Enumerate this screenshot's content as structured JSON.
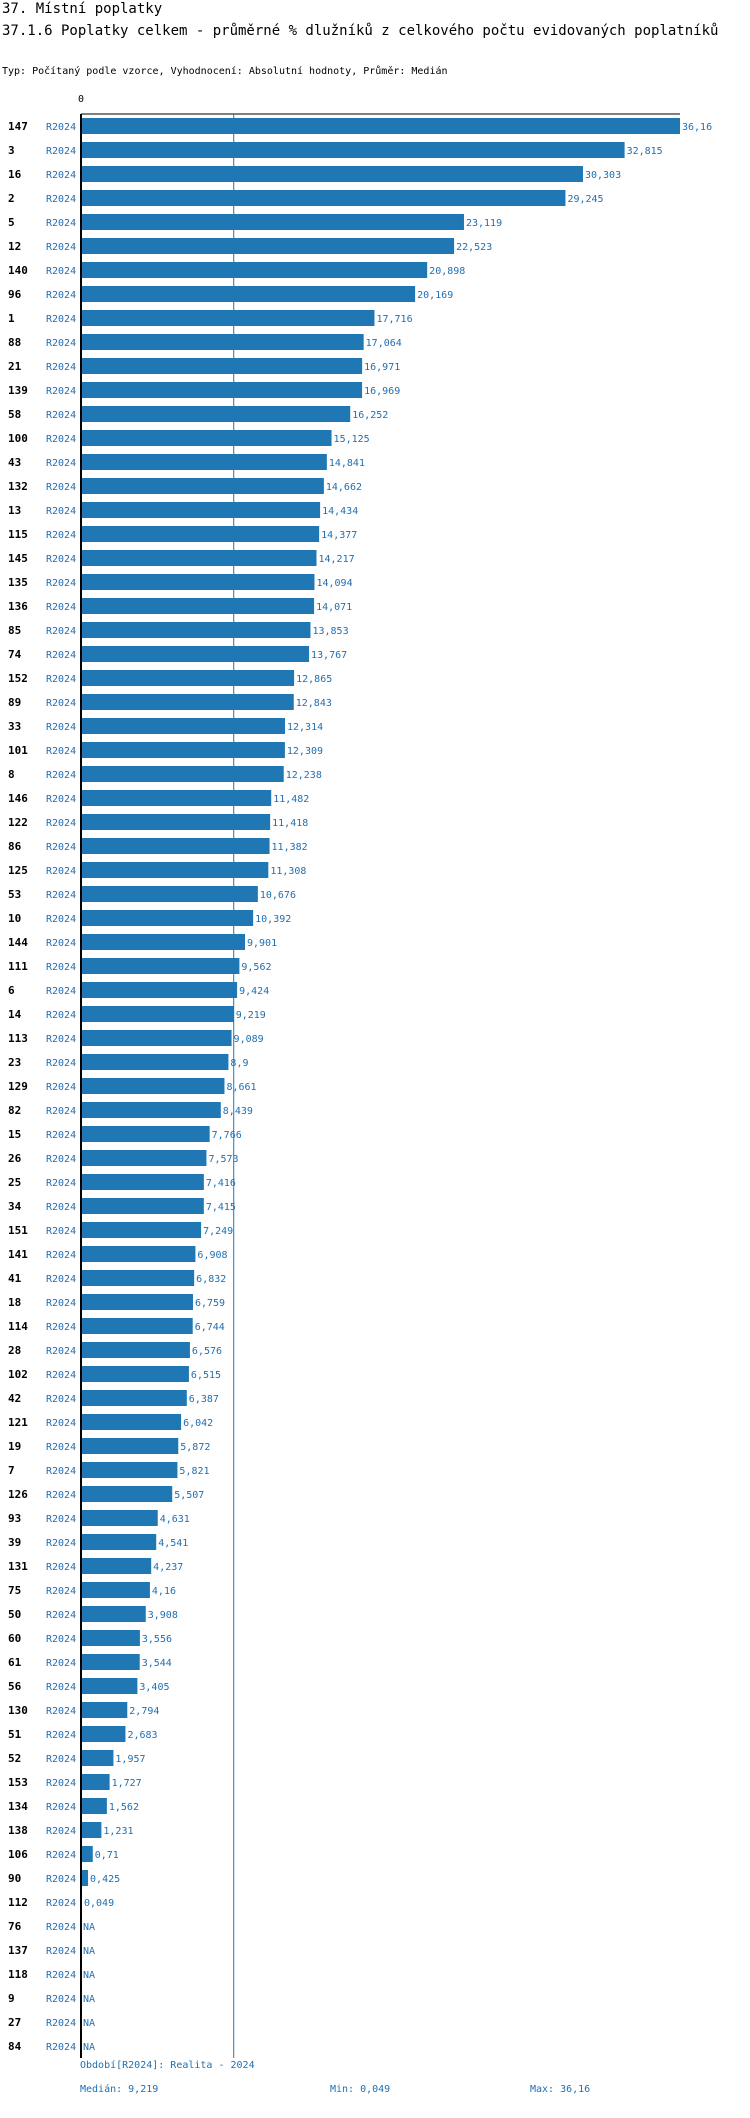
{
  "header": {
    "title": "37. Místní poplatky",
    "subtitle": "37.1.6 Poplatky celkem - průměrné % dlužníků z celkového počtu evidovaných poplatníků",
    "type_line": "Typ: Počítaný podle vzorce, Vyhodnocení: Absolutní hodnoty, Průměr: Medián"
  },
  "footer": {
    "period": "Období[R2024]: Realita - 2024",
    "median": "Medián: 9,219",
    "min": "Min: 0,049",
    "max": "Max: 36,16"
  },
  "colors": {
    "bar": "#1f77b4",
    "text_blue": "#1f6fb2",
    "median_line": "#1f77b4"
  },
  "chart_data": {
    "type": "bar",
    "orientation": "horizontal",
    "zero_label": "0",
    "period_label": "R2024",
    "median": 9.219,
    "xlim": [
      0,
      36.16
    ],
    "rows": [
      {
        "id": "147",
        "value": 36.16,
        "label": "36,16"
      },
      {
        "id": "3",
        "value": 32.815,
        "label": "32,815"
      },
      {
        "id": "16",
        "value": 30.303,
        "label": "30,303"
      },
      {
        "id": "2",
        "value": 29.245,
        "label": "29,245"
      },
      {
        "id": "5",
        "value": 23.119,
        "label": "23,119"
      },
      {
        "id": "12",
        "value": 22.523,
        "label": "22,523"
      },
      {
        "id": "140",
        "value": 20.898,
        "label": "20,898"
      },
      {
        "id": "96",
        "value": 20.169,
        "label": "20,169"
      },
      {
        "id": "1",
        "value": 17.716,
        "label": "17,716"
      },
      {
        "id": "88",
        "value": 17.064,
        "label": "17,064"
      },
      {
        "id": "21",
        "value": 16.971,
        "label": "16,971"
      },
      {
        "id": "139",
        "value": 16.969,
        "label": "16,969"
      },
      {
        "id": "58",
        "value": 16.252,
        "label": "16,252"
      },
      {
        "id": "100",
        "value": 15.125,
        "label": "15,125"
      },
      {
        "id": "43",
        "value": 14.841,
        "label": "14,841"
      },
      {
        "id": "132",
        "value": 14.662,
        "label": "14,662"
      },
      {
        "id": "13",
        "value": 14.434,
        "label": "14,434"
      },
      {
        "id": "115",
        "value": 14.377,
        "label": "14,377"
      },
      {
        "id": "145",
        "value": 14.217,
        "label": "14,217"
      },
      {
        "id": "135",
        "value": 14.094,
        "label": "14,094"
      },
      {
        "id": "136",
        "value": 14.071,
        "label": "14,071"
      },
      {
        "id": "85",
        "value": 13.853,
        "label": "13,853"
      },
      {
        "id": "74",
        "value": 13.767,
        "label": "13,767"
      },
      {
        "id": "152",
        "value": 12.865,
        "label": "12,865"
      },
      {
        "id": "89",
        "value": 12.843,
        "label": "12,843"
      },
      {
        "id": "33",
        "value": 12.314,
        "label": "12,314"
      },
      {
        "id": "101",
        "value": 12.309,
        "label": "12,309"
      },
      {
        "id": "8",
        "value": 12.238,
        "label": "12,238"
      },
      {
        "id": "146",
        "value": 11.482,
        "label": "11,482"
      },
      {
        "id": "122",
        "value": 11.418,
        "label": "11,418"
      },
      {
        "id": "86",
        "value": 11.382,
        "label": "11,382"
      },
      {
        "id": "125",
        "value": 11.308,
        "label": "11,308"
      },
      {
        "id": "53",
        "value": 10.676,
        "label": "10,676"
      },
      {
        "id": "10",
        "value": 10.392,
        "label": "10,392"
      },
      {
        "id": "144",
        "value": 9.901,
        "label": "9,901"
      },
      {
        "id": "111",
        "value": 9.562,
        "label": "9,562"
      },
      {
        "id": "6",
        "value": 9.424,
        "label": "9,424"
      },
      {
        "id": "14",
        "value": 9.219,
        "label": "9,219"
      },
      {
        "id": "113",
        "value": 9.089,
        "label": "9,089"
      },
      {
        "id": "23",
        "value": 8.9,
        "label": "8,9"
      },
      {
        "id": "129",
        "value": 8.661,
        "label": "8,661"
      },
      {
        "id": "82",
        "value": 8.439,
        "label": "8,439"
      },
      {
        "id": "15",
        "value": 7.766,
        "label": "7,766"
      },
      {
        "id": "26",
        "value": 7.573,
        "label": "7,573"
      },
      {
        "id": "25",
        "value": 7.416,
        "label": "7,416"
      },
      {
        "id": "34",
        "value": 7.415,
        "label": "7,415"
      },
      {
        "id": "151",
        "value": 7.249,
        "label": "7,249"
      },
      {
        "id": "141",
        "value": 6.908,
        "label": "6,908"
      },
      {
        "id": "41",
        "value": 6.832,
        "label": "6,832"
      },
      {
        "id": "18",
        "value": 6.759,
        "label": "6,759"
      },
      {
        "id": "114",
        "value": 6.744,
        "label": "6,744"
      },
      {
        "id": "28",
        "value": 6.576,
        "label": "6,576"
      },
      {
        "id": "102",
        "value": 6.515,
        "label": "6,515"
      },
      {
        "id": "42",
        "value": 6.387,
        "label": "6,387"
      },
      {
        "id": "121",
        "value": 6.042,
        "label": "6,042"
      },
      {
        "id": "19",
        "value": 5.872,
        "label": "5,872"
      },
      {
        "id": "7",
        "value": 5.821,
        "label": "5,821"
      },
      {
        "id": "126",
        "value": 5.507,
        "label": "5,507"
      },
      {
        "id": "93",
        "value": 4.631,
        "label": "4,631"
      },
      {
        "id": "39",
        "value": 4.541,
        "label": "4,541"
      },
      {
        "id": "131",
        "value": 4.237,
        "label": "4,237"
      },
      {
        "id": "75",
        "value": 4.16,
        "label": "4,16"
      },
      {
        "id": "50",
        "value": 3.908,
        "label": "3,908"
      },
      {
        "id": "60",
        "value": 3.556,
        "label": "3,556"
      },
      {
        "id": "61",
        "value": 3.544,
        "label": "3,544"
      },
      {
        "id": "56",
        "value": 3.405,
        "label": "3,405"
      },
      {
        "id": "130",
        "value": 2.794,
        "label": "2,794"
      },
      {
        "id": "51",
        "value": 2.683,
        "label": "2,683"
      },
      {
        "id": "52",
        "value": 1.957,
        "label": "1,957"
      },
      {
        "id": "153",
        "value": 1.727,
        "label": "1,727"
      },
      {
        "id": "134",
        "value": 1.562,
        "label": "1,562"
      },
      {
        "id": "138",
        "value": 1.231,
        "label": "1,231"
      },
      {
        "id": "106",
        "value": 0.71,
        "label": "0,71"
      },
      {
        "id": "90",
        "value": 0.425,
        "label": "0,425"
      },
      {
        "id": "112",
        "value": 0.049,
        "label": "0,049"
      },
      {
        "id": "76",
        "value": null,
        "label": "NA"
      },
      {
        "id": "137",
        "value": null,
        "label": "NA"
      },
      {
        "id": "118",
        "value": null,
        "label": "NA"
      },
      {
        "id": "9",
        "value": null,
        "label": "NA"
      },
      {
        "id": "27",
        "value": null,
        "label": "NA"
      },
      {
        "id": "84",
        "value": null,
        "label": "NA"
      }
    ]
  }
}
